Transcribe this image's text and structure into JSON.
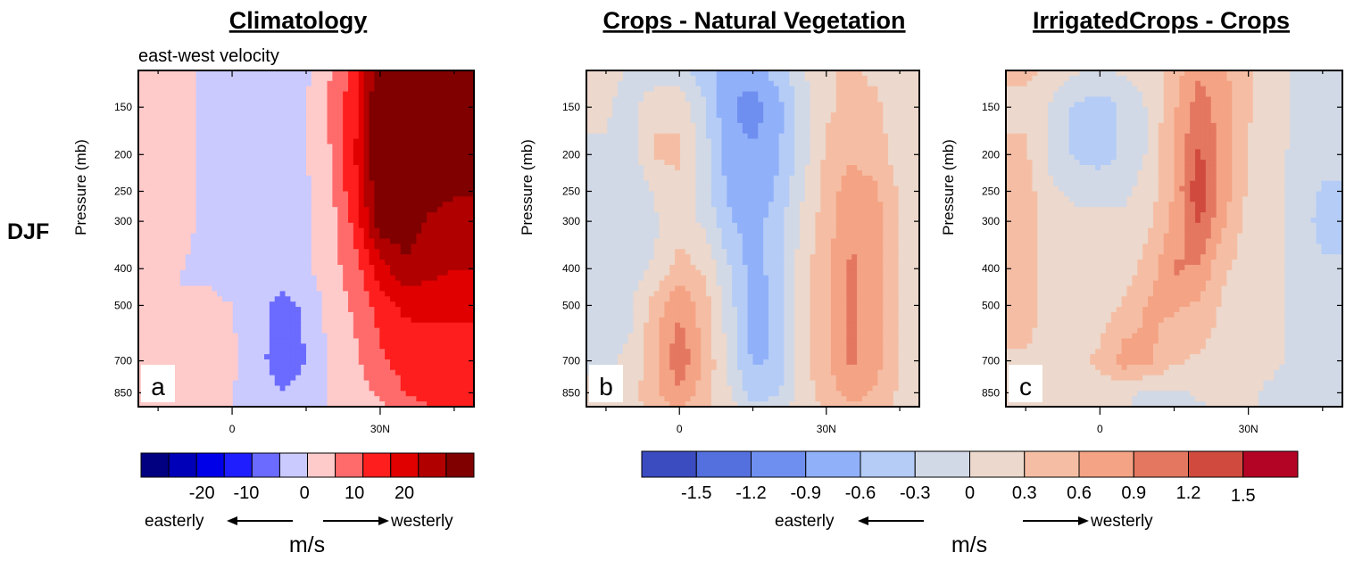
{
  "figure": {
    "row_label": "DJF",
    "x_ticks": [
      "0",
      "30N"
    ],
    "y_ticks": [
      "150",
      "200",
      "250",
      "300",
      "400",
      "500",
      "700",
      "850"
    ],
    "ylabel": "Pressure (mb)"
  },
  "colorbars": [
    {
      "name": "climatology",
      "colors": [
        "#000080",
        "#0000b8",
        "#0000e8",
        "#1e1eff",
        "#6b6bff",
        "#cacaff",
        "#ffcaca",
        "#ff6b6b",
        "#ff1e1e",
        "#e00000",
        "#b00000",
        "#800000"
      ],
      "labels": [
        "-20",
        "-10",
        "0",
        "10",
        "20"
      ],
      "left_text": "easterly",
      "right_text": "westerly",
      "unit": "m/s"
    },
    {
      "name": "difference",
      "colors": [
        "#3b4cc0",
        "#5470de",
        "#6f8ff0",
        "#91b0fa",
        "#b4ccf6",
        "#d2d9e6",
        "#ecd8cc",
        "#f5bea4",
        "#f4a384",
        "#e47760",
        "#d04a3e",
        "#b40426"
      ],
      "labels": [
        "-1.5",
        "-1.2",
        "-0.9",
        "-0.6",
        "-0.3",
        "0",
        "0.3",
        "0.6",
        "0.9",
        "1.2",
        "1.5"
      ],
      "left_text": "easterly",
      "right_text": "westerly",
      "unit": "m/s"
    }
  ],
  "chart_data": [
    {
      "type": "heatmap",
      "panel": "a",
      "title": "Climatology",
      "subtitle": "east-west velocity",
      "xlabel": "",
      "ylabel": "Pressure (mb)",
      "x": [
        -15,
        -10,
        -5,
        0,
        5,
        10,
        15,
        20,
        25,
        30,
        35,
        40,
        45
      ],
      "y": [
        120,
        150,
        200,
        250,
        300,
        400,
        500,
        700,
        850,
        925
      ],
      "x_ticks": [
        "0",
        "30N"
      ],
      "y_ticks": [
        150,
        200,
        250,
        300,
        400,
        500,
        700,
        850
      ],
      "z": [
        [
          3,
          1,
          -1,
          -2,
          -2,
          -2,
          -1,
          5,
          12,
          30,
          32,
          30,
          28
        ],
        [
          3,
          1,
          -1,
          -2,
          -2,
          -2,
          0,
          6,
          14,
          32,
          33,
          32,
          30
        ],
        [
          3,
          1,
          -1,
          -2,
          -2,
          -2,
          0,
          5,
          15,
          32,
          33,
          32,
          30
        ],
        [
          2,
          1,
          -1,
          -2,
          -2,
          -2,
          -1,
          4,
          14,
          30,
          30,
          28,
          26
        ],
        [
          1,
          1,
          -1,
          -2,
          -2,
          -2,
          -1,
          3,
          12,
          28,
          28,
          24,
          22
        ],
        [
          1,
          0,
          -1,
          -2,
          -2,
          -2,
          -1,
          3,
          8,
          18,
          24,
          22,
          20
        ],
        [
          0,
          0,
          1,
          0,
          -3,
          -7,
          -4,
          2,
          6,
          12,
          16,
          16,
          16
        ],
        [
          0,
          0,
          2,
          1,
          -3,
          -8,
          -5,
          1,
          4,
          9,
          12,
          13,
          13
        ],
        [
          0,
          0,
          1,
          0,
          -2,
          -5,
          -3,
          1,
          3,
          6,
          10,
          12,
          12
        ],
        [
          0,
          0,
          0,
          0,
          -1,
          -2,
          -1,
          0,
          2,
          4,
          8,
          10,
          10
        ]
      ],
      "levels": [
        -25,
        -20,
        -15,
        -10,
        -5,
        0,
        5,
        10,
        15,
        20,
        25
      ]
    },
    {
      "type": "heatmap",
      "panel": "b",
      "title": "Crops - Natural Vegetation",
      "xlabel": "",
      "ylabel": "Pressure (mb)",
      "x": [
        -15,
        -10,
        -5,
        0,
        5,
        10,
        15,
        20,
        25,
        30,
        35,
        40,
        45
      ],
      "y": [
        120,
        150,
        200,
        250,
        300,
        400,
        500,
        700,
        850,
        925
      ],
      "x_ticks": [
        "0",
        "30N"
      ],
      "y_ticks": [
        150,
        200,
        250,
        300,
        400,
        500,
        700,
        850
      ],
      "z": [
        [
          0,
          -0.2,
          -0.4,
          -0.4,
          -0.6,
          -0.9,
          -0.9,
          -0.6,
          -0.2,
          0.1,
          0.2,
          0.1,
          0
        ],
        [
          -0.1,
          -0.3,
          0.1,
          0.1,
          -0.4,
          -1.0,
          -1.2,
          -0.9,
          -0.3,
          0.1,
          0.2,
          0.2,
          0
        ],
        [
          -0.2,
          -0.3,
          0.2,
          0.2,
          -0.3,
          -0.9,
          -1.0,
          -0.8,
          -0.3,
          0.2,
          0.4,
          0.3,
          0
        ],
        [
          -0.3,
          -0.4,
          -0.1,
          0.1,
          -0.3,
          -0.8,
          -1.0,
          -0.7,
          -0.2,
          0.3,
          0.6,
          0.5,
          0.1
        ],
        [
          -0.4,
          -0.4,
          -0.2,
          0,
          -0.2,
          -0.7,
          -0.9,
          -0.6,
          -0.1,
          0.3,
          0.7,
          0.6,
          0.1
        ],
        [
          -0.4,
          -0.3,
          -0.1,
          0.3,
          0.1,
          -0.4,
          -0.9,
          -0.6,
          0,
          0.4,
          0.8,
          0.6,
          0.1
        ],
        [
          -0.3,
          -0.2,
          0.3,
          0.7,
          0.3,
          -0.3,
          -0.9,
          -0.7,
          0,
          0.4,
          0.8,
          0.6,
          0.1
        ],
        [
          -0.2,
          -0.1,
          0.4,
          1.0,
          0.4,
          -0.2,
          -0.8,
          -0.7,
          0,
          0.4,
          0.8,
          0.6,
          0.1
        ],
        [
          -0.1,
          0,
          0.4,
          0.7,
          0.3,
          -0.1,
          -0.6,
          -0.5,
          0,
          0.3,
          0.6,
          0.4,
          0.1
        ],
        [
          0,
          0,
          0.3,
          0.5,
          0.2,
          0,
          -0.4,
          -0.3,
          0,
          0.2,
          0.4,
          0.3,
          0.1
        ]
      ],
      "levels": [
        -1.65,
        -1.35,
        -1.05,
        -0.75,
        -0.45,
        -0.15,
        0.15,
        0.45,
        0.75,
        1.05,
        1.35
      ]
    },
    {
      "type": "heatmap",
      "panel": "c",
      "title": "IrrigatedCrops - Crops",
      "xlabel": "",
      "ylabel": "Pressure (mb)",
      "x": [
        -15,
        -10,
        -5,
        0,
        5,
        10,
        15,
        20,
        25,
        30,
        35,
        40,
        45
      ],
      "y": [
        120,
        150,
        200,
        250,
        300,
        400,
        500,
        700,
        850,
        925
      ],
      "x_ticks": [
        "0",
        "30N"
      ],
      "y_ticks": [
        150,
        200,
        250,
        300,
        400,
        500,
        700,
        850
      ],
      "z": [
        [
          0.2,
          0.1,
          -0.1,
          -0.2,
          -0.1,
          0,
          0.3,
          0.7,
          0.5,
          0.2,
          0,
          -0.2,
          -0.3
        ],
        [
          0.1,
          -0.2,
          -0.5,
          -0.6,
          -0.4,
          -0.1,
          0.4,
          0.9,
          0.6,
          0.2,
          0,
          -0.2,
          -0.3
        ],
        [
          0.2,
          -0.2,
          -0.5,
          -0.6,
          -0.4,
          -0.1,
          0.5,
          1.1,
          0.6,
          0.1,
          -0.1,
          -0.2,
          -0.3
        ],
        [
          0.3,
          -0.1,
          -0.2,
          -0.2,
          -0.2,
          0,
          0.5,
          1.3,
          0.6,
          0.1,
          -0.1,
          -0.2,
          -0.5
        ],
        [
          0.3,
          0,
          -0.1,
          -0.1,
          -0.1,
          0.1,
          0.5,
          1.1,
          0.5,
          0,
          -0.1,
          -0.2,
          -0.6
        ],
        [
          0.3,
          0,
          0,
          0,
          0,
          0.3,
          0.8,
          0.7,
          0.2,
          0,
          -0.1,
          -0.2,
          -0.4
        ],
        [
          0.3,
          0,
          0,
          0,
          0.2,
          0.5,
          0.5,
          0.4,
          0.1,
          0,
          -0.1,
          -0.2,
          -0.3
        ],
        [
          0.1,
          0.1,
          0.1,
          0.2,
          0.6,
          0.5,
          0.2,
          0.1,
          0,
          -0.1,
          -0.1,
          -0.2,
          -0.3
        ],
        [
          0.1,
          0.1,
          0,
          0,
          -0.1,
          -0.2,
          -0.2,
          -0.1,
          0,
          -0.1,
          -0.2,
          -0.3,
          -0.4
        ],
        [
          0.1,
          0.1,
          0,
          0,
          -0.1,
          -0.3,
          -0.3,
          -0.2,
          -0.1,
          -0.1,
          -0.2,
          -0.3,
          -0.4
        ]
      ],
      "levels": [
        -1.65,
        -1.35,
        -1.05,
        -0.75,
        -0.45,
        -0.15,
        0.15,
        0.45,
        0.75,
        1.05,
        1.35
      ]
    }
  ]
}
